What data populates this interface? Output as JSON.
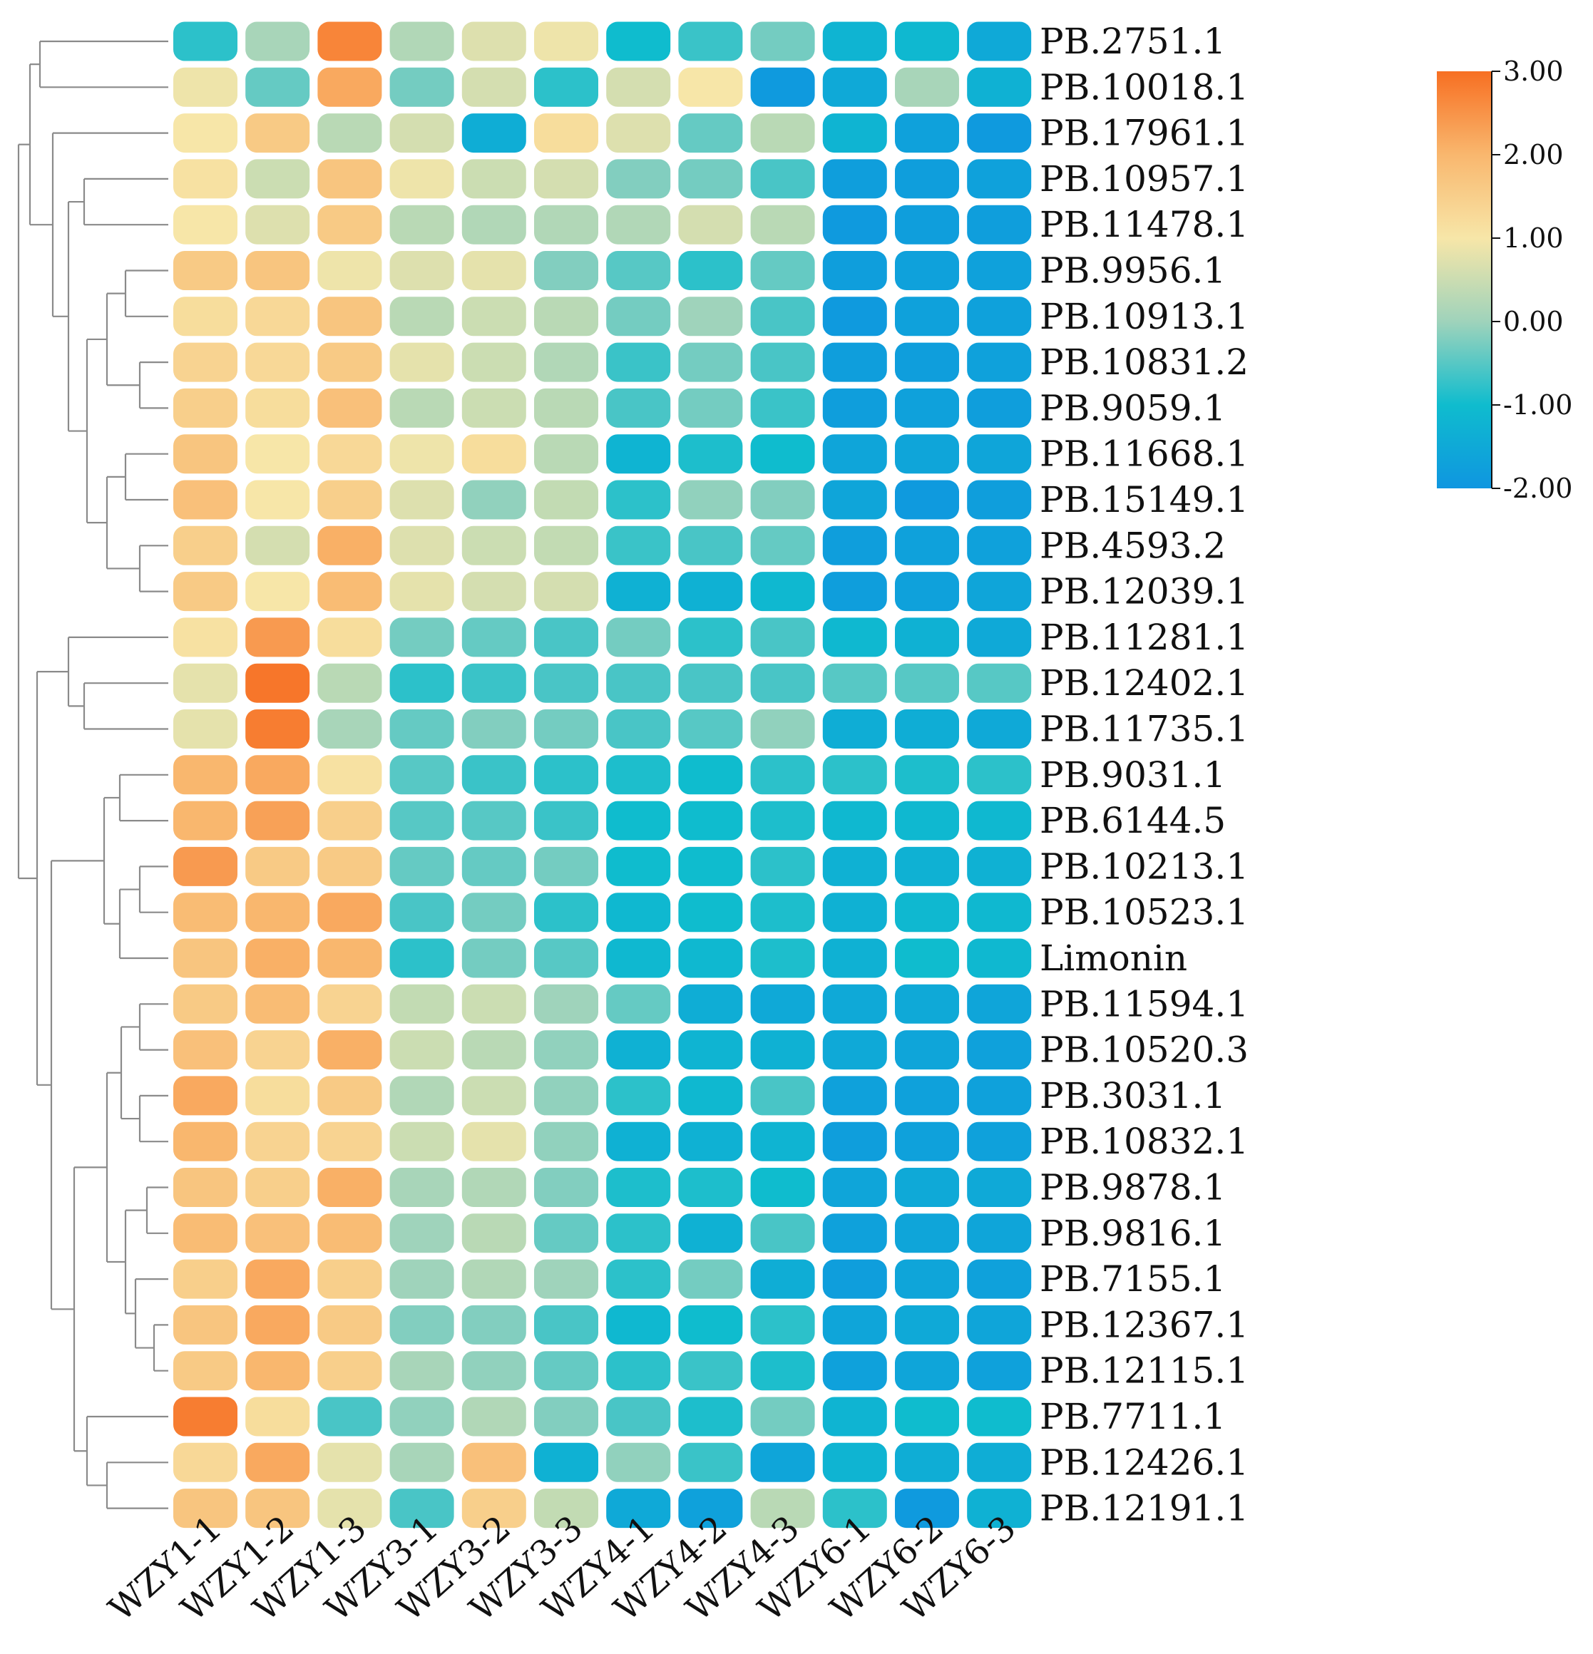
{
  "chart_data": {
    "type": "heatmap",
    "title": "",
    "row_labels": [
      "PB.2751.1",
      "PB.10018.1",
      "PB.17961.1",
      "PB.10957.1",
      "PB.11478.1",
      "PB.9956.1",
      "PB.10913.1",
      "PB.10831.2",
      "PB.9059.1",
      "PB.11668.1",
      "PB.15149.1",
      "PB.4593.2",
      "PB.12039.1",
      "PB.11281.1",
      "PB.12402.1",
      "PB.11735.1",
      "PB.9031.1",
      "PB.6144.5",
      "PB.10213.1",
      "PB.10523.1",
      "Limonin",
      "PB.11594.1",
      "PB.10520.3",
      "PB.3031.1",
      "PB.10832.1",
      "PB.9878.1",
      "PB.9816.1",
      "PB.7155.1",
      "PB.12367.1",
      "PB.12115.1",
      "PB.7711.1",
      "PB.12426.1",
      "PB.12191.1"
    ],
    "column_labels": [
      "WZY1-1",
      "WZY1-2",
      "WZY1-3",
      "WZY3-1",
      "WZY3-2",
      "WZY3-3",
      "WZY4-1",
      "WZY4-2",
      "WZY4-3",
      "WZY6-1",
      "WZY6-2",
      "WZY6-3"
    ],
    "values": [
      [
        -0.8,
        0.1,
        2.7,
        0.2,
        0.7,
        0.9,
        -1.0,
        -0.7,
        -0.3,
        -1.2,
        -1.1,
        -1.5
      ],
      [
        0.9,
        -0.4,
        2.2,
        -0.3,
        0.6,
        -0.8,
        0.6,
        1.0,
        -1.9,
        -1.5,
        0.1,
        -1.3
      ],
      [
        1.0,
        1.6,
        0.3,
        0.6,
        -1.4,
        1.2,
        0.7,
        -0.4,
        0.3,
        -1.2,
        -1.7,
        -1.9
      ],
      [
        1.1,
        0.5,
        1.7,
        0.9,
        0.5,
        0.6,
        -0.2,
        -0.3,
        -0.6,
        -1.8,
        -1.8,
        -1.7
      ],
      [
        1.0,
        0.7,
        1.6,
        0.3,
        0.2,
        0.2,
        0.2,
        0.6,
        0.3,
        -1.9,
        -1.8,
        -1.8
      ],
      [
        1.6,
        1.7,
        0.9,
        0.7,
        0.8,
        -0.2,
        -0.5,
        -0.8,
        -0.4,
        -1.8,
        -1.7,
        -1.7
      ],
      [
        1.2,
        1.3,
        1.7,
        0.3,
        0.5,
        0.3,
        -0.3,
        0.0,
        -0.6,
        -1.9,
        -1.7,
        -1.7
      ],
      [
        1.4,
        1.3,
        1.6,
        0.8,
        0.5,
        0.2,
        -0.7,
        -0.3,
        -0.6,
        -1.8,
        -1.8,
        -1.7
      ],
      [
        1.5,
        1.2,
        1.8,
        0.3,
        0.5,
        0.3,
        -0.6,
        -0.3,
        -0.7,
        -1.8,
        -1.7,
        -1.8
      ],
      [
        1.7,
        1.0,
        1.3,
        0.9,
        1.2,
        0.3,
        -1.2,
        -0.9,
        -1.0,
        -1.6,
        -1.6,
        -1.6
      ],
      [
        1.8,
        1.0,
        1.5,
        0.7,
        -0.1,
        0.4,
        -0.8,
        -0.1,
        -0.2,
        -1.6,
        -1.9,
        -1.8
      ],
      [
        1.5,
        0.6,
        2.1,
        0.7,
        0.5,
        0.4,
        -0.7,
        -0.6,
        -0.4,
        -1.8,
        -1.7,
        -1.7
      ],
      [
        1.6,
        1.0,
        1.9,
        0.8,
        0.6,
        0.6,
        -1.3,
        -1.3,
        -1.1,
        -1.8,
        -1.7,
        -1.6
      ],
      [
        1.1,
        2.4,
        1.2,
        -0.3,
        -0.4,
        -0.6,
        -0.3,
        -0.8,
        -0.6,
        -1.1,
        -1.3,
        -1.5
      ],
      [
        0.8,
        2.9,
        0.3,
        -0.8,
        -0.7,
        -0.6,
        -0.6,
        -0.6,
        -0.6,
        -0.5,
        -0.5,
        -0.5
      ],
      [
        0.8,
        2.8,
        0.1,
        -0.4,
        -0.2,
        -0.3,
        -0.6,
        -0.5,
        -0.1,
        -1.4,
        -1.4,
        -1.5
      ],
      [
        2.0,
        2.2,
        1.1,
        -0.5,
        -0.7,
        -0.8,
        -0.9,
        -1.0,
        -0.8,
        -0.8,
        -0.9,
        -0.8
      ],
      [
        2.0,
        2.3,
        1.5,
        -0.5,
        -0.5,
        -0.7,
        -1.0,
        -1.0,
        -0.9,
        -1.1,
        -1.1,
        -1.1
      ],
      [
        2.4,
        1.6,
        1.6,
        -0.4,
        -0.4,
        -0.3,
        -1.0,
        -1.0,
        -0.8,
        -1.3,
        -1.3,
        -1.3
      ],
      [
        1.9,
        2.0,
        2.2,
        -0.6,
        -0.3,
        -0.8,
        -1.1,
        -1.0,
        -0.9,
        -1.3,
        -1.1,
        -1.1
      ],
      [
        1.7,
        2.1,
        2.0,
        -0.8,
        -0.3,
        -0.5,
        -1.1,
        -1.1,
        -0.9,
        -1.3,
        -1.0,
        -1.1
      ],
      [
        1.6,
        1.9,
        1.4,
        0.4,
        0.5,
        0.0,
        -0.4,
        -1.4,
        -1.5,
        -1.5,
        -1.5,
        -1.6
      ],
      [
        1.8,
        1.4,
        2.1,
        0.5,
        0.3,
        -0.1,
        -1.3,
        -1.2,
        -1.3,
        -1.5,
        -1.6,
        -1.7
      ],
      [
        2.2,
        1.2,
        1.6,
        0.2,
        0.5,
        -0.1,
        -0.8,
        -1.1,
        -0.6,
        -1.7,
        -1.7,
        -1.7
      ],
      [
        2.0,
        1.4,
        1.4,
        0.5,
        0.8,
        -0.1,
        -1.3,
        -1.3,
        -1.2,
        -1.8,
        -1.7,
        -1.7
      ],
      [
        1.7,
        1.5,
        2.1,
        0.1,
        0.2,
        -0.2,
        -0.9,
        -0.9,
        -1.0,
        -1.6,
        -1.5,
        -1.5
      ],
      [
        1.9,
        1.8,
        1.9,
        0.0,
        0.3,
        -0.4,
        -0.8,
        -1.3,
        -0.6,
        -1.7,
        -1.6,
        -1.6
      ],
      [
        1.5,
        2.2,
        1.5,
        0.0,
        0.2,
        0.0,
        -0.8,
        -0.3,
        -1.4,
        -1.8,
        -1.6,
        -1.7
      ],
      [
        1.7,
        2.2,
        1.6,
        -0.2,
        -0.2,
        -0.6,
        -1.1,
        -1.0,
        -0.8,
        -1.6,
        -1.5,
        -1.6
      ],
      [
        1.6,
        2.0,
        1.5,
        0.1,
        -0.1,
        -0.4,
        -0.8,
        -0.7,
        -0.9,
        -1.7,
        -1.6,
        -1.7
      ],
      [
        2.8,
        1.2,
        -0.6,
        -0.1,
        0.2,
        -0.2,
        -0.6,
        -0.9,
        -0.3,
        -1.2,
        -1.0,
        -1.0
      ],
      [
        1.3,
        2.2,
        0.8,
        0.1,
        1.8,
        -1.3,
        -0.1,
        -0.7,
        -1.6,
        -1.2,
        -1.4,
        -1.4
      ],
      [
        1.7,
        1.7,
        0.8,
        -0.6,
        1.5,
        0.4,
        -1.5,
        -1.7,
        0.3,
        -0.8,
        -1.9,
        -1.3
      ]
    ],
    "colorbar": {
      "min": -2.0,
      "max": 3.0,
      "ticks": [
        "3.00",
        "2.00",
        "1.00",
        "0.00",
        "-1.00",
        "-2.00"
      ],
      "tick_values": [
        3,
        2,
        1,
        0,
        -1,
        -2
      ],
      "colors": [
        "#0f96e0",
        "#0fbcce",
        "#9fd3bb",
        "#f7e6a8",
        "#f9b76e",
        "#f76f22"
      ]
    },
    "dendrogram": "row clustering tree on left side"
  }
}
